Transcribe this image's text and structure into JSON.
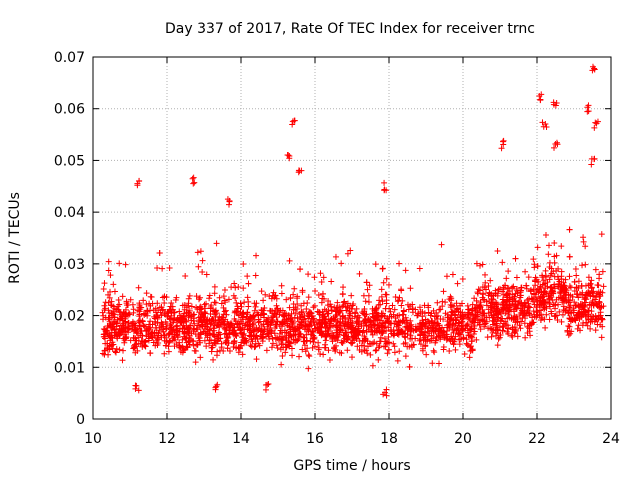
{
  "chart_data": {
    "type": "scatter",
    "title": "Day 337 of 2017, Rate Of TEC Index for receiver trnc",
    "xlabel": "GPS time / hours",
    "ylabel": "ROTI / TECUs",
    "xlim": [
      10,
      24
    ],
    "ylim": [
      0,
      0.07
    ],
    "xticks": [
      10,
      12,
      14,
      16,
      18,
      20,
      22,
      24
    ],
    "yticks": [
      0,
      0.01,
      0.02,
      0.03,
      0.04,
      0.05,
      0.06,
      0.07
    ],
    "xtick_labels": [
      "10",
      "12",
      "14",
      "16",
      "18",
      "20",
      "22",
      "24"
    ],
    "ytick_labels": [
      "0",
      "0.01",
      "0.02",
      "0.03",
      "0.04",
      "0.05",
      "0.06",
      "0.07"
    ],
    "grid": true,
    "marker": "+",
    "marker_color": "#ff0000",
    "series": [
      {
        "name": "ROTI",
        "x_range": [
          10.25,
          23.8
        ],
        "point_count": 3000,
        "typical_range": [
          0.007,
          0.035
        ],
        "notable_points": [
          {
            "x": 15.4,
            "y": 0.057
          },
          {
            "x": 15.3,
            "y": 0.051
          },
          {
            "x": 15.6,
            "y": 0.048
          },
          {
            "x": 17.9,
            "y": 0.045
          },
          {
            "x": 21.1,
            "y": 0.053
          },
          {
            "x": 22.1,
            "y": 0.062
          },
          {
            "x": 22.2,
            "y": 0.057
          },
          {
            "x": 22.5,
            "y": 0.061
          },
          {
            "x": 22.5,
            "y": 0.053
          },
          {
            "x": 23.4,
            "y": 0.06
          },
          {
            "x": 23.55,
            "y": 0.068
          },
          {
            "x": 23.6,
            "y": 0.057
          },
          {
            "x": 23.5,
            "y": 0.05
          },
          {
            "x": 11.2,
            "y": 0.046
          },
          {
            "x": 12.7,
            "y": 0.046
          },
          {
            "x": 13.7,
            "y": 0.042
          },
          {
            "x": 11.2,
            "y": 0.006
          },
          {
            "x": 13.3,
            "y": 0.006
          },
          {
            "x": 17.9,
            "y": 0.005
          },
          {
            "x": 14.7,
            "y": 0.006
          }
        ]
      }
    ]
  }
}
